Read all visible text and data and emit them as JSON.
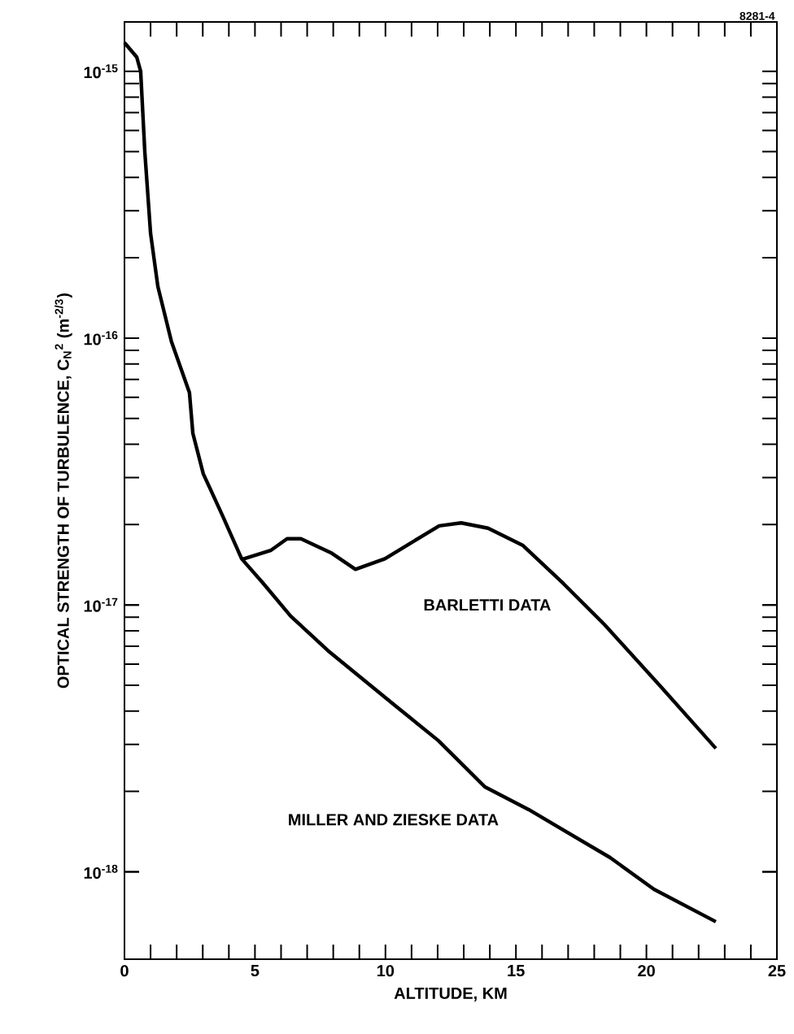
{
  "chart_data": {
    "type": "line",
    "xlabel": "ALTITUDE, KM",
    "ylabel": "OPTICAL STRENGTH OF TURBULENCE, C$_{N}$$^{2}$ (m$^{-2/3}$)",
    "annotations": [
      "8281-4"
    ],
    "log": "y",
    "marker": "none",
    "line_style": "solid",
    "xlim": [
      0,
      25
    ],
    "xticks": [
      0,
      5,
      10,
      15,
      20,
      25
    ],
    "ylim": [
      4.7e-19,
      1.53e-15
    ],
    "yticks": [
      {
        "value": 1e-18,
        "label": "10$^{-18}$"
      },
      {
        "value": 1e-17,
        "label": "10$^{-17}$"
      },
      {
        "value": 1e-16,
        "label": "10$^{-16}$"
      },
      {
        "value": 1e-15,
        "label": "10$^{-15}$"
      }
    ],
    "series": [
      {
        "name": "BARLETTI DATA",
        "color": "#000000",
        "x": [
          4.49,
          4.58,
          5.6,
          6.23,
          6.76,
          7.91,
          8.85,
          9.98,
          11.03,
          12.06,
          12.9,
          13.93,
          15.27,
          16.83,
          18.39,
          20.51,
          22.66
        ],
        "values": [
          1.49e-17,
          1.49e-17,
          1.6e-17,
          1.77e-17,
          1.77e-17,
          1.57e-17,
          1.36e-17,
          1.49e-17,
          1.72e-17,
          1.98e-17,
          2.03e-17,
          1.94e-17,
          1.67e-17,
          1.2e-17,
          8.45e-18,
          4.99e-18,
          2.9e-18
        ]
      },
      {
        "name": "MILLER AND ZIESKE DATA",
        "color": "#000000",
        "x": [
          0,
          0.47,
          0.62,
          0.78,
          1.0,
          1.28,
          1.8,
          2.49,
          2.62,
          3.02,
          3.74,
          4.49,
          5.3,
          6.36,
          7.79,
          10.38,
          12.03,
          13.81,
          15.49,
          18.61,
          20.29,
          22.66
        ],
        "values": [
          1.28e-15,
          1.13e-15,
          1e-15,
          4.99e-16,
          2.47e-16,
          1.56e-16,
          9.7e-17,
          6.25e-17,
          4.4e-17,
          3.1e-17,
          2.18e-17,
          1.49e-17,
          1.21e-17,
          9.1e-18,
          6.75e-18,
          4.19e-18,
          3.1e-18,
          2.08e-18,
          1.71e-18,
          1.13e-18,
          8.6e-19,
          6.5e-19
        ]
      }
    ]
  }
}
